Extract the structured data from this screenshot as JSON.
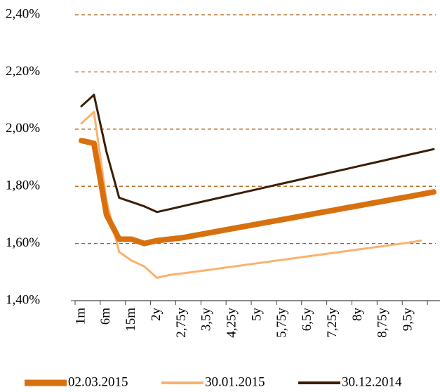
{
  "chart_data": {
    "type": "line",
    "categories": [
      "1m",
      null,
      "6m",
      null,
      "15m",
      null,
      "2y",
      null,
      "2,75y",
      null,
      "3,5y",
      null,
      "4,25y",
      null,
      "5y",
      null,
      "5,75y",
      null,
      "6,5y",
      null,
      "7,25y",
      null,
      "8y",
      null,
      "8,75y",
      null,
      "9,5y",
      null,
      null
    ],
    "series": [
      {
        "name": "02.03.2015",
        "color": "#d8700e",
        "values": [
          1.96,
          1.95,
          1.7,
          1.615,
          1.615,
          1.6,
          1.61,
          1.615,
          1.62,
          1.628,
          1.636,
          1.644,
          1.652,
          1.66,
          1.668,
          1.676,
          1.684,
          1.692,
          1.7,
          1.708,
          1.716,
          1.724,
          1.732,
          1.74,
          1.748,
          1.756,
          1.764,
          1.772,
          1.78
        ]
      },
      {
        "name": "30.01.2015",
        "color": "#f9b26e",
        "values": [
          2.02,
          2.06,
          1.75,
          1.57,
          1.54,
          1.52,
          1.48,
          1.49,
          1.495,
          1.501,
          1.507,
          1.513,
          1.519,
          1.525,
          1.531,
          1.537,
          1.543,
          1.549,
          1.555,
          1.561,
          1.567,
          1.573,
          1.579,
          1.585,
          1.591,
          1.597,
          1.603,
          1.61,
          null
        ]
      },
      {
        "name": "30.12.2014",
        "color": "#3b1e04",
        "values": [
          2.08,
          2.12,
          1.92,
          1.76,
          1.745,
          1.73,
          1.71,
          1.72,
          1.73,
          1.74,
          1.75,
          1.76,
          1.77,
          1.78,
          1.79,
          1.8,
          1.81,
          1.82,
          1.83,
          1.84,
          1.85,
          1.86,
          1.87,
          1.88,
          1.89,
          1.9,
          1.91,
          1.92,
          1.93
        ]
      }
    ],
    "ylim": [
      1.4,
      2.4
    ],
    "yticks": [
      {
        "value": 1.4,
        "label": "1,40%"
      },
      {
        "value": 1.6,
        "label": "1,60%"
      },
      {
        "value": 1.8,
        "label": "1,80%"
      },
      {
        "value": 2.0,
        "label": "2,00%"
      },
      {
        "value": 2.2,
        "label": "2,20%"
      },
      {
        "value": 2.4,
        "label": "2,40%"
      }
    ],
    "grid": true,
    "legend": "bottom"
  }
}
